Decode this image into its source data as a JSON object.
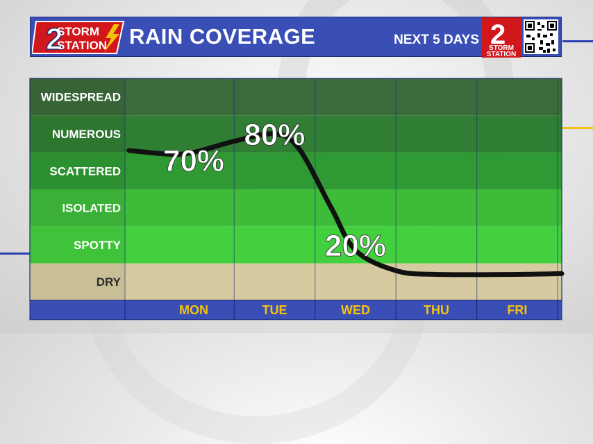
{
  "header": {
    "logo_left": {
      "line1": "STORM",
      "line2": "STATION",
      "number": "2"
    },
    "title": "RAIN COVERAGE",
    "subtitle": "NEXT 5 DAYS",
    "logo_right": {
      "number": "2",
      "line1": "STORM",
      "line2": "STATION"
    }
  },
  "colors": {
    "header_blue": "#3a4fb6",
    "day_label": "#f4c20d",
    "curve": "#111111",
    "dry_band": "#d6cba0"
  },
  "chart_data": {
    "type": "line",
    "title": "RAIN COVERAGE",
    "subtitle": "NEXT 5 DAYS",
    "levels": [
      "DRY",
      "SPOTTY",
      "ISOLATED",
      "SCATTERED",
      "NUMEROUS",
      "WIDESPREAD"
    ],
    "days": [
      "MON",
      "TUE",
      "WED",
      "THU",
      "FRI"
    ],
    "annotations": [
      {
        "text": "70%",
        "day": "MON",
        "level": 3.3
      },
      {
        "text": "80%",
        "day": "TUE",
        "level": 4.0
      },
      {
        "text": "20%",
        "day": "WED",
        "level": 1.0
      }
    ],
    "curve": [
      {
        "day": -0.8,
        "level": 3.55
      },
      {
        "day": -0.3,
        "level": 3.45
      },
      {
        "day": 0.0,
        "level": 3.5
      },
      {
        "day": 0.5,
        "level": 3.8
      },
      {
        "day": 1.0,
        "level": 4.0
      },
      {
        "day": 1.3,
        "level": 3.6
      },
      {
        "day": 1.7,
        "level": 2.0
      },
      {
        "day": 2.0,
        "level": 0.85
      },
      {
        "day": 2.5,
        "level": 0.3
      },
      {
        "day": 3.0,
        "level": 0.2
      },
      {
        "day": 4.0,
        "level": 0.2
      },
      {
        "day": 4.55,
        "level": 0.22
      }
    ]
  }
}
